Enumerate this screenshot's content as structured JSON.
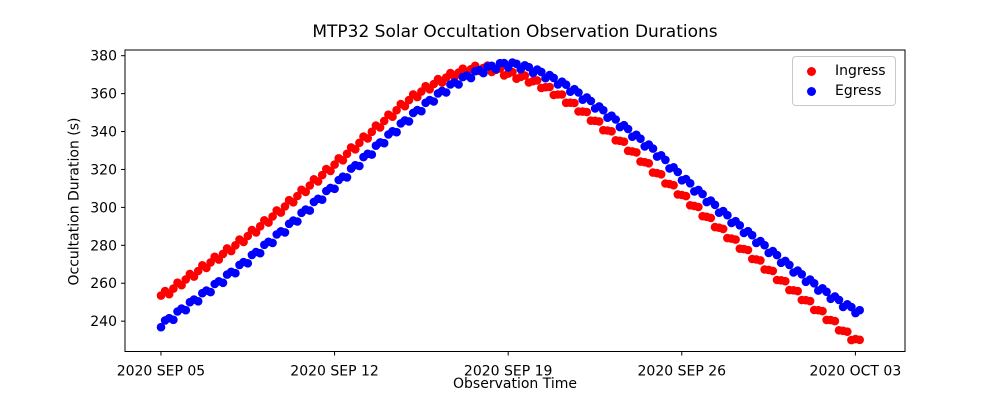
{
  "figure": {
    "title": "MTP32 Solar Occultation Observation Durations",
    "xlabel": "Observation Time",
    "ylabel": "Occultation Duration (s)"
  },
  "legend": {
    "position": "upper right",
    "items": [
      {
        "label": "Ingress",
        "color": "#ff0000",
        "marker": "circle"
      },
      {
        "label": "Egress",
        "color": "#0000ff",
        "marker": "circle"
      }
    ]
  },
  "chart_data": {
    "type": "scatter",
    "title": "MTP32 Solar Occultation Observation Durations",
    "xlabel": "Observation Time",
    "ylabel": "Occultation Duration (s)",
    "grid": false,
    "legend_position": "upper right",
    "day0_date": "2020 SEP 05",
    "x_tick_labels": [
      "2020 SEP 05",
      "2020 SEP 12",
      "2020 SEP 19",
      "2020 SEP 26",
      "2020 OCT 03"
    ],
    "x_tick_days": [
      0,
      7,
      14,
      21,
      28
    ],
    "y_ticks": [
      240,
      260,
      280,
      300,
      320,
      340,
      360,
      380
    ],
    "xlim_days": [
      -1.45,
      30.0
    ],
    "ylim": [
      224,
      383
    ],
    "sample_step_days": 0.1667,
    "marker_radius_px": 4.3,
    "wobble": {
      "amplitude": 1.7,
      "period_days": 0.5
    },
    "series": [
      {
        "name": "Ingress",
        "color": "#ff0000",
        "marker": "circle",
        "start_day": 0,
        "end_day": 28.22,
        "wobble_phase": 0.0,
        "peak": {
          "day": 13,
          "value": 373.5
        },
        "daily_values": [
          253.5,
          262,
          271,
          280,
          290,
          300.5,
          311.5,
          322.5,
          334,
          345.5,
          356.5,
          365,
          371,
          373.5,
          370.5,
          366.5,
          359.5,
          350.5,
          340.5,
          329.5,
          318,
          306.5,
          295,
          283.5,
          272.5,
          261.5,
          251,
          240.5,
          230.5
        ]
      },
      {
        "name": "Egress",
        "color": "#0000ff",
        "marker": "circle",
        "start_day": 0,
        "end_day": 28.32,
        "wobble_phase": -1.5,
        "peak": {
          "day": 14,
          "value": 375.5
        },
        "daily_values": [
          238.5,
          247.5,
          257,
          267,
          277.5,
          288.5,
          300,
          311.5,
          323.5,
          335.5,
          347,
          357.5,
          366.5,
          372.5,
          375.5,
          372.5,
          366.5,
          358.5,
          349,
          339,
          328.5,
          316,
          304.5,
          293.5,
          283,
          272.5,
          262.5,
          253.5,
          246
        ]
      }
    ]
  }
}
